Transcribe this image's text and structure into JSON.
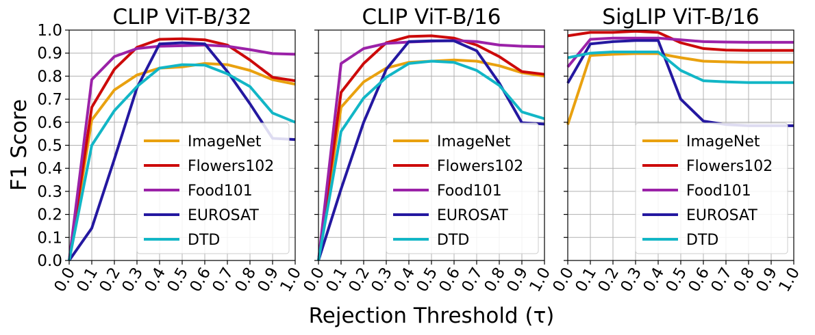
{
  "chart_data": [
    {
      "type": "line",
      "title": "CLIP ViT-B/32",
      "x": [
        0.0,
        0.1,
        0.2,
        0.3,
        0.4,
        0.5,
        0.6,
        0.7,
        0.8,
        0.9,
        1.0
      ],
      "xlim": [
        0,
        1
      ],
      "ylim": [
        0,
        1
      ],
      "series": [
        {
          "name": "ImageNet",
          "color": "#e9a10f",
          "values": [
            0.0,
            0.61,
            0.74,
            0.805,
            0.835,
            0.84,
            0.855,
            0.85,
            0.825,
            0.785,
            0.765
          ]
        },
        {
          "name": "Flowers102",
          "color": "#cc0a0a",
          "values": [
            0.0,
            0.665,
            0.83,
            0.925,
            0.96,
            0.962,
            0.958,
            0.935,
            0.87,
            0.795,
            0.78
          ]
        },
        {
          "name": "Food101",
          "color": "#9b22a8",
          "values": [
            0.0,
            0.785,
            0.885,
            0.92,
            0.93,
            0.932,
            0.935,
            0.93,
            0.915,
            0.898,
            0.895
          ]
        },
        {
          "name": "EUROSAT",
          "color": "#2418a0",
          "values": [
            0.0,
            0.14,
            0.44,
            0.75,
            0.94,
            0.945,
            0.94,
            0.82,
            0.68,
            0.53,
            0.525
          ]
        },
        {
          "name": "DTD",
          "color": "#12b6c6",
          "values": [
            0.0,
            0.5,
            0.65,
            0.755,
            0.835,
            0.85,
            0.848,
            0.81,
            0.755,
            0.64,
            0.6
          ]
        }
      ]
    },
    {
      "type": "line",
      "title": "CLIP ViT-B/16",
      "x": [
        0.0,
        0.1,
        0.2,
        0.3,
        0.4,
        0.5,
        0.6,
        0.7,
        0.8,
        0.9,
        1.0
      ],
      "xlim": [
        0,
        1
      ],
      "ylim": [
        0,
        1
      ],
      "series": [
        {
          "name": "ImageNet",
          "color": "#e9a10f",
          "values": [
            0.0,
            0.665,
            0.775,
            0.835,
            0.86,
            0.865,
            0.87,
            0.865,
            0.845,
            0.815,
            0.8
          ]
        },
        {
          "name": "Flowers102",
          "color": "#cc0a0a",
          "values": [
            0.0,
            0.73,
            0.855,
            0.945,
            0.972,
            0.975,
            0.965,
            0.935,
            0.885,
            0.82,
            0.808
          ]
        },
        {
          "name": "Food101",
          "color": "#9b22a8",
          "values": [
            0.0,
            0.855,
            0.92,
            0.942,
            0.948,
            0.952,
            0.955,
            0.95,
            0.935,
            0.93,
            0.928
          ]
        },
        {
          "name": "EUROSAT",
          "color": "#2418a0",
          "values": [
            0.0,
            0.31,
            0.6,
            0.83,
            0.95,
            0.953,
            0.953,
            0.91,
            0.77,
            0.598,
            0.592
          ]
        },
        {
          "name": "DTD",
          "color": "#12b6c6",
          "values": [
            0.0,
            0.56,
            0.705,
            0.795,
            0.855,
            0.865,
            0.86,
            0.825,
            0.76,
            0.645,
            0.615
          ]
        }
      ]
    },
    {
      "type": "line",
      "title": "SigLIP ViT-B/16",
      "x": [
        0.0,
        0.1,
        0.2,
        0.3,
        0.4,
        0.5,
        0.6,
        0.7,
        0.8,
        0.9,
        1.0
      ],
      "xlim": [
        0,
        1
      ],
      "ylim": [
        0,
        1
      ],
      "series": [
        {
          "name": "ImageNet",
          "color": "#e9a10f",
          "values": [
            0.59,
            0.89,
            0.895,
            0.898,
            0.898,
            0.88,
            0.865,
            0.862,
            0.86,
            0.86,
            0.86
          ]
        },
        {
          "name": "Flowers102",
          "color": "#cc0a0a",
          "values": [
            0.975,
            0.99,
            0.99,
            0.995,
            0.99,
            0.945,
            0.92,
            0.913,
            0.912,
            0.912,
            0.912
          ]
        },
        {
          "name": "Food101",
          "color": "#9b22a8",
          "values": [
            0.84,
            0.96,
            0.965,
            0.965,
            0.965,
            0.958,
            0.95,
            0.948,
            0.947,
            0.947,
            0.947
          ]
        },
        {
          "name": "EUROSAT",
          "color": "#2418a0",
          "values": [
            0.77,
            0.94,
            0.95,
            0.955,
            0.955,
            0.7,
            0.605,
            0.59,
            0.585,
            0.585,
            0.585
          ]
        },
        {
          "name": "DTD",
          "color": "#12b6c6",
          "values": [
            0.88,
            0.9,
            0.905,
            0.905,
            0.905,
            0.825,
            0.78,
            0.775,
            0.772,
            0.772,
            0.772
          ]
        }
      ]
    }
  ],
  "labels": {
    "xlabel": "Rejection Threshold (τ)",
    "ylabel": "F1 Score",
    "xticks": [
      "0.0",
      "0.1",
      "0.2",
      "0.3",
      "0.4",
      "0.5",
      "0.6",
      "0.7",
      "0.8",
      "0.9",
      "1.0"
    ],
    "yticks": [
      "0.0",
      "0.1",
      "0.2",
      "0.3",
      "0.4",
      "0.5",
      "0.6",
      "0.7",
      "0.8",
      "0.9",
      "1.0"
    ],
    "legend_location": "lower-right"
  }
}
